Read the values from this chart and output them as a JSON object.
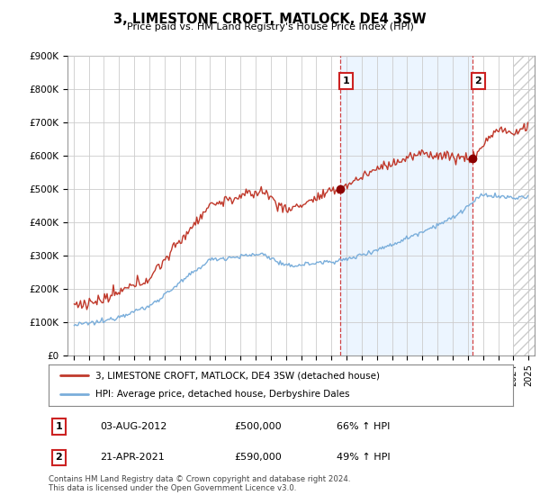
{
  "title": "3, LIMESTONE CROFT, MATLOCK, DE4 3SW",
  "subtitle": "Price paid vs. HM Land Registry's House Price Index (HPI)",
  "legend_line1": "3, LIMESTONE CROFT, MATLOCK, DE4 3SW (detached house)",
  "legend_line2": "HPI: Average price, detached house, Derbyshire Dales",
  "annotation1_label": "1",
  "annotation1_date": "03-AUG-2012",
  "annotation1_price": "£500,000",
  "annotation1_change": "66% ↑ HPI",
  "annotation2_label": "2",
  "annotation2_date": "21-APR-2021",
  "annotation2_price": "£590,000",
  "annotation2_change": "49% ↑ HPI",
  "footer": "Contains HM Land Registry data © Crown copyright and database right 2024.\nThis data is licensed under the Open Government Licence v3.0.",
  "hpi_color": "#7aaedb",
  "price_color": "#c0392b",
  "annotation_color": "#cc2222",
  "background_color": "#ffffff",
  "grid_color": "#cccccc",
  "panel_color": "#ddeeff",
  "hatch_color": "#cccccc",
  "ylim": [
    0,
    900000
  ],
  "yticks": [
    0,
    100000,
    200000,
    300000,
    400000,
    500000,
    600000,
    700000,
    800000,
    900000
  ],
  "sale1_x": 2012.58,
  "sale1_y": 500000,
  "sale2_x": 2021.3,
  "sale2_y": 590000,
  "xmin": 1994.6,
  "xmax": 2025.4,
  "hatch_start": 2024.0
}
